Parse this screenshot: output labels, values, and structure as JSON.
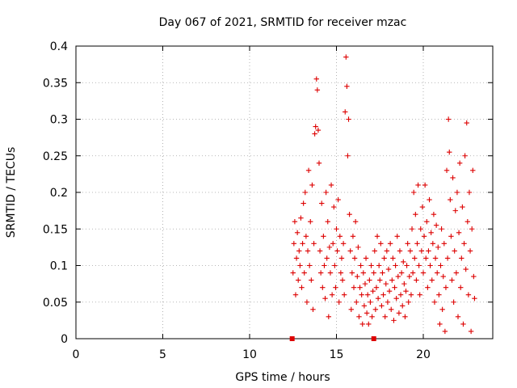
{
  "chart_data": {
    "type": "scatter",
    "title": "Day 067 of 2021, SRMTID for receiver mzac",
    "xlabel": "GPS time / hours",
    "ylabel": "SRMTID / TECUs",
    "xlim": [
      0,
      24
    ],
    "ylim": [
      0,
      0.4
    ],
    "xticks": [
      0,
      5,
      10,
      15,
      20
    ],
    "yticks": [
      0,
      0.05,
      0.1,
      0.15,
      0.2,
      0.25,
      0.3,
      0.35,
      0.4
    ],
    "xtick_labels": [
      "0",
      "5",
      "10",
      "15",
      "20"
    ],
    "ytick_labels": [
      "0",
      "0.05",
      "0.1",
      "0.15",
      "0.2",
      "0.25",
      "0.3",
      "0.35",
      "0.4"
    ],
    "grid": true,
    "marker": "+",
    "color": "#dd0000",
    "series": [
      {
        "name": "SRMTID",
        "points": [
          [
            12.5,
            0.09
          ],
          [
            12.55,
            0.13
          ],
          [
            12.6,
            0.16
          ],
          [
            12.65,
            0.06
          ],
          [
            12.7,
            0.11
          ],
          [
            12.75,
            0.145
          ],
          [
            12.8,
            0.08
          ],
          [
            12.85,
            0.12
          ],
          [
            12.9,
            0.1
          ],
          [
            12.95,
            0.165
          ],
          [
            13.0,
            0.07
          ],
          [
            13.05,
            0.13
          ],
          [
            13.1,
            0.185
          ],
          [
            13.15,
            0.09
          ],
          [
            13.2,
            0.2
          ],
          [
            13.25,
            0.14
          ],
          [
            13.3,
            0.05
          ],
          [
            13.35,
            0.12
          ],
          [
            13.4,
            0.23
          ],
          [
            13.45,
            0.1
          ],
          [
            13.5,
            0.16
          ],
          [
            13.55,
            0.08
          ],
          [
            13.6,
            0.21
          ],
          [
            13.65,
            0.04
          ],
          [
            13.7,
            0.13
          ],
          [
            13.75,
            0.28
          ],
          [
            13.8,
            0.29
          ],
          [
            13.85,
            0.355
          ],
          [
            13.9,
            0.34
          ],
          [
            13.95,
            0.285
          ],
          [
            14.0,
            0.24
          ],
          [
            14.05,
            0.12
          ],
          [
            14.1,
            0.09
          ],
          [
            14.15,
            0.185
          ],
          [
            14.2,
            0.07
          ],
          [
            14.25,
            0.14
          ],
          [
            14.3,
            0.1
          ],
          [
            14.35,
            0.055
          ],
          [
            14.4,
            0.2
          ],
          [
            14.45,
            0.11
          ],
          [
            14.5,
            0.16
          ],
          [
            14.55,
            0.03
          ],
          [
            14.6,
            0.125
          ],
          [
            14.65,
            0.09
          ],
          [
            14.7,
            0.21
          ],
          [
            14.75,
            0.06
          ],
          [
            14.8,
            0.13
          ],
          [
            14.85,
            0.18
          ],
          [
            14.9,
            0.1
          ],
          [
            14.95,
            0.07
          ],
          [
            15.0,
            0.15
          ],
          [
            15.05,
            0.12
          ],
          [
            15.1,
            0.19
          ],
          [
            15.15,
            0.05
          ],
          [
            15.2,
            0.14
          ],
          [
            15.25,
            0.09
          ],
          [
            15.3,
            0.11
          ],
          [
            15.35,
            0.08
          ],
          [
            15.4,
            0.13
          ],
          [
            15.45,
            0.06
          ],
          [
            15.5,
            0.31
          ],
          [
            15.55,
            0.385
          ],
          [
            15.6,
            0.345
          ],
          [
            15.65,
            0.25
          ],
          [
            15.7,
            0.3
          ],
          [
            15.75,
            0.17
          ],
          [
            15.8,
            0.12
          ],
          [
            15.85,
            0.04
          ],
          [
            15.9,
            0.09
          ],
          [
            15.95,
            0.14
          ],
          [
            16.0,
            0.07
          ],
          [
            16.05,
            0.11
          ],
          [
            16.1,
            0.16
          ],
          [
            16.15,
            0.05
          ],
          [
            16.2,
            0.085
          ],
          [
            16.25,
            0.125
          ],
          [
            16.3,
            0.03
          ],
          [
            16.35,
            0.07
          ],
          [
            16.4,
            0.1
          ],
          [
            16.45,
            0.06
          ],
          [
            16.5,
            0.02
          ],
          [
            16.55,
            0.09
          ],
          [
            16.6,
            0.045
          ],
          [
            16.65,
            0.075
          ],
          [
            16.7,
            0.11
          ],
          [
            16.75,
            0.035
          ],
          [
            16.8,
            0.06
          ],
          [
            16.85,
            0.02
          ],
          [
            16.9,
            0.08
          ],
          [
            16.95,
            0.05
          ],
          [
            17.0,
            0.1
          ],
          [
            17.05,
            0.03
          ],
          [
            17.1,
            0.065
          ],
          [
            17.15,
            0.09
          ],
          [
            17.2,
            0.12
          ],
          [
            17.25,
            0.04
          ],
          [
            17.3,
            0.07
          ],
          [
            17.35,
            0.14
          ],
          [
            17.4,
            0.055
          ],
          [
            17.45,
            0.1
          ],
          [
            17.5,
            0.08
          ],
          [
            17.55,
            0.13
          ],
          [
            17.6,
            0.045
          ],
          [
            17.65,
            0.09
          ],
          [
            17.7,
            0.06
          ],
          [
            17.75,
            0.11
          ],
          [
            17.8,
            0.03
          ],
          [
            17.85,
            0.075
          ],
          [
            17.9,
            0.12
          ],
          [
            17.95,
            0.05
          ],
          [
            18.0,
            0.095
          ],
          [
            18.05,
            0.065
          ],
          [
            18.1,
            0.13
          ],
          [
            18.15,
            0.04
          ],
          [
            18.2,
            0.08
          ],
          [
            18.25,
            0.11
          ],
          [
            18.3,
            0.025
          ],
          [
            18.35,
            0.07
          ],
          [
            18.4,
            0.1
          ],
          [
            18.45,
            0.055
          ],
          [
            18.5,
            0.14
          ],
          [
            18.55,
            0.085
          ],
          [
            18.6,
            0.035
          ],
          [
            18.65,
            0.12
          ],
          [
            18.7,
            0.06
          ],
          [
            18.75,
            0.09
          ],
          [
            18.8,
            0.045
          ],
          [
            18.85,
            0.105
          ],
          [
            18.9,
            0.075
          ],
          [
            18.95,
            0.03
          ],
          [
            19.0,
            0.065
          ],
          [
            19.05,
            0.1
          ],
          [
            19.1,
            0.13
          ],
          [
            19.15,
            0.05
          ],
          [
            19.2,
            0.085
          ],
          [
            19.25,
            0.12
          ],
          [
            19.3,
            0.06
          ],
          [
            19.35,
            0.15
          ],
          [
            19.4,
            0.09
          ],
          [
            19.45,
            0.2
          ],
          [
            19.5,
            0.11
          ],
          [
            19.55,
            0.17
          ],
          [
            19.6,
            0.08
          ],
          [
            19.65,
            0.13
          ],
          [
            19.7,
            0.21
          ],
          [
            19.75,
            0.1
          ],
          [
            19.8,
            0.06
          ],
          [
            19.85,
            0.15
          ],
          [
            19.9,
            0.12
          ],
          [
            19.95,
            0.18
          ],
          [
            20.0,
            0.09
          ],
          [
            20.05,
            0.14
          ],
          [
            20.1,
            0.21
          ],
          [
            20.15,
            0.11
          ],
          [
            20.2,
            0.16
          ],
          [
            20.25,
            0.07
          ],
          [
            20.3,
            0.12
          ],
          [
            20.35,
            0.19
          ],
          [
            20.4,
            0.1
          ],
          [
            20.45,
            0.145
          ],
          [
            20.5,
            0.08
          ],
          [
            20.55,
            0.13
          ],
          [
            20.6,
            0.17
          ],
          [
            20.65,
            0.05
          ],
          [
            20.7,
            0.11
          ],
          [
            20.75,
            0.155
          ],
          [
            20.8,
            0.09
          ],
          [
            20.85,
            0.125
          ],
          [
            20.9,
            0.06
          ],
          [
            20.95,
            0.02
          ],
          [
            21.0,
            0.1
          ],
          [
            21.05,
            0.15
          ],
          [
            21.1,
            0.04
          ],
          [
            21.15,
            0.085
          ],
          [
            21.2,
            0.13
          ],
          [
            21.25,
            0.01
          ],
          [
            21.3,
            0.07
          ],
          [
            21.35,
            0.23
          ],
          [
            21.4,
            0.11
          ],
          [
            21.45,
            0.3
          ],
          [
            21.5,
            0.255
          ],
          [
            21.55,
            0.19
          ],
          [
            21.6,
            0.14
          ],
          [
            21.65,
            0.08
          ],
          [
            21.7,
            0.22
          ],
          [
            21.75,
            0.05
          ],
          [
            21.8,
            0.12
          ],
          [
            21.85,
            0.175
          ],
          [
            21.9,
            0.09
          ],
          [
            21.95,
            0.2
          ],
          [
            22.0,
            0.03
          ],
          [
            22.05,
            0.145
          ],
          [
            22.1,
            0.24
          ],
          [
            22.15,
            0.07
          ],
          [
            22.2,
            0.11
          ],
          [
            22.25,
            0.18
          ],
          [
            22.3,
            0.02
          ],
          [
            22.35,
            0.13
          ],
          [
            22.4,
            0.25
          ],
          [
            22.45,
            0.095
          ],
          [
            22.5,
            0.295
          ],
          [
            22.55,
            0.16
          ],
          [
            22.6,
            0.06
          ],
          [
            22.65,
            0.2
          ],
          [
            22.7,
            0.12
          ],
          [
            22.75,
            0.01
          ],
          [
            22.8,
            0.15
          ],
          [
            22.85,
            0.23
          ],
          [
            22.9,
            0.085
          ],
          [
            22.95,
            0.055
          ]
        ]
      }
    ],
    "markers_on_axis": [
      12.45,
      17.15
    ]
  }
}
